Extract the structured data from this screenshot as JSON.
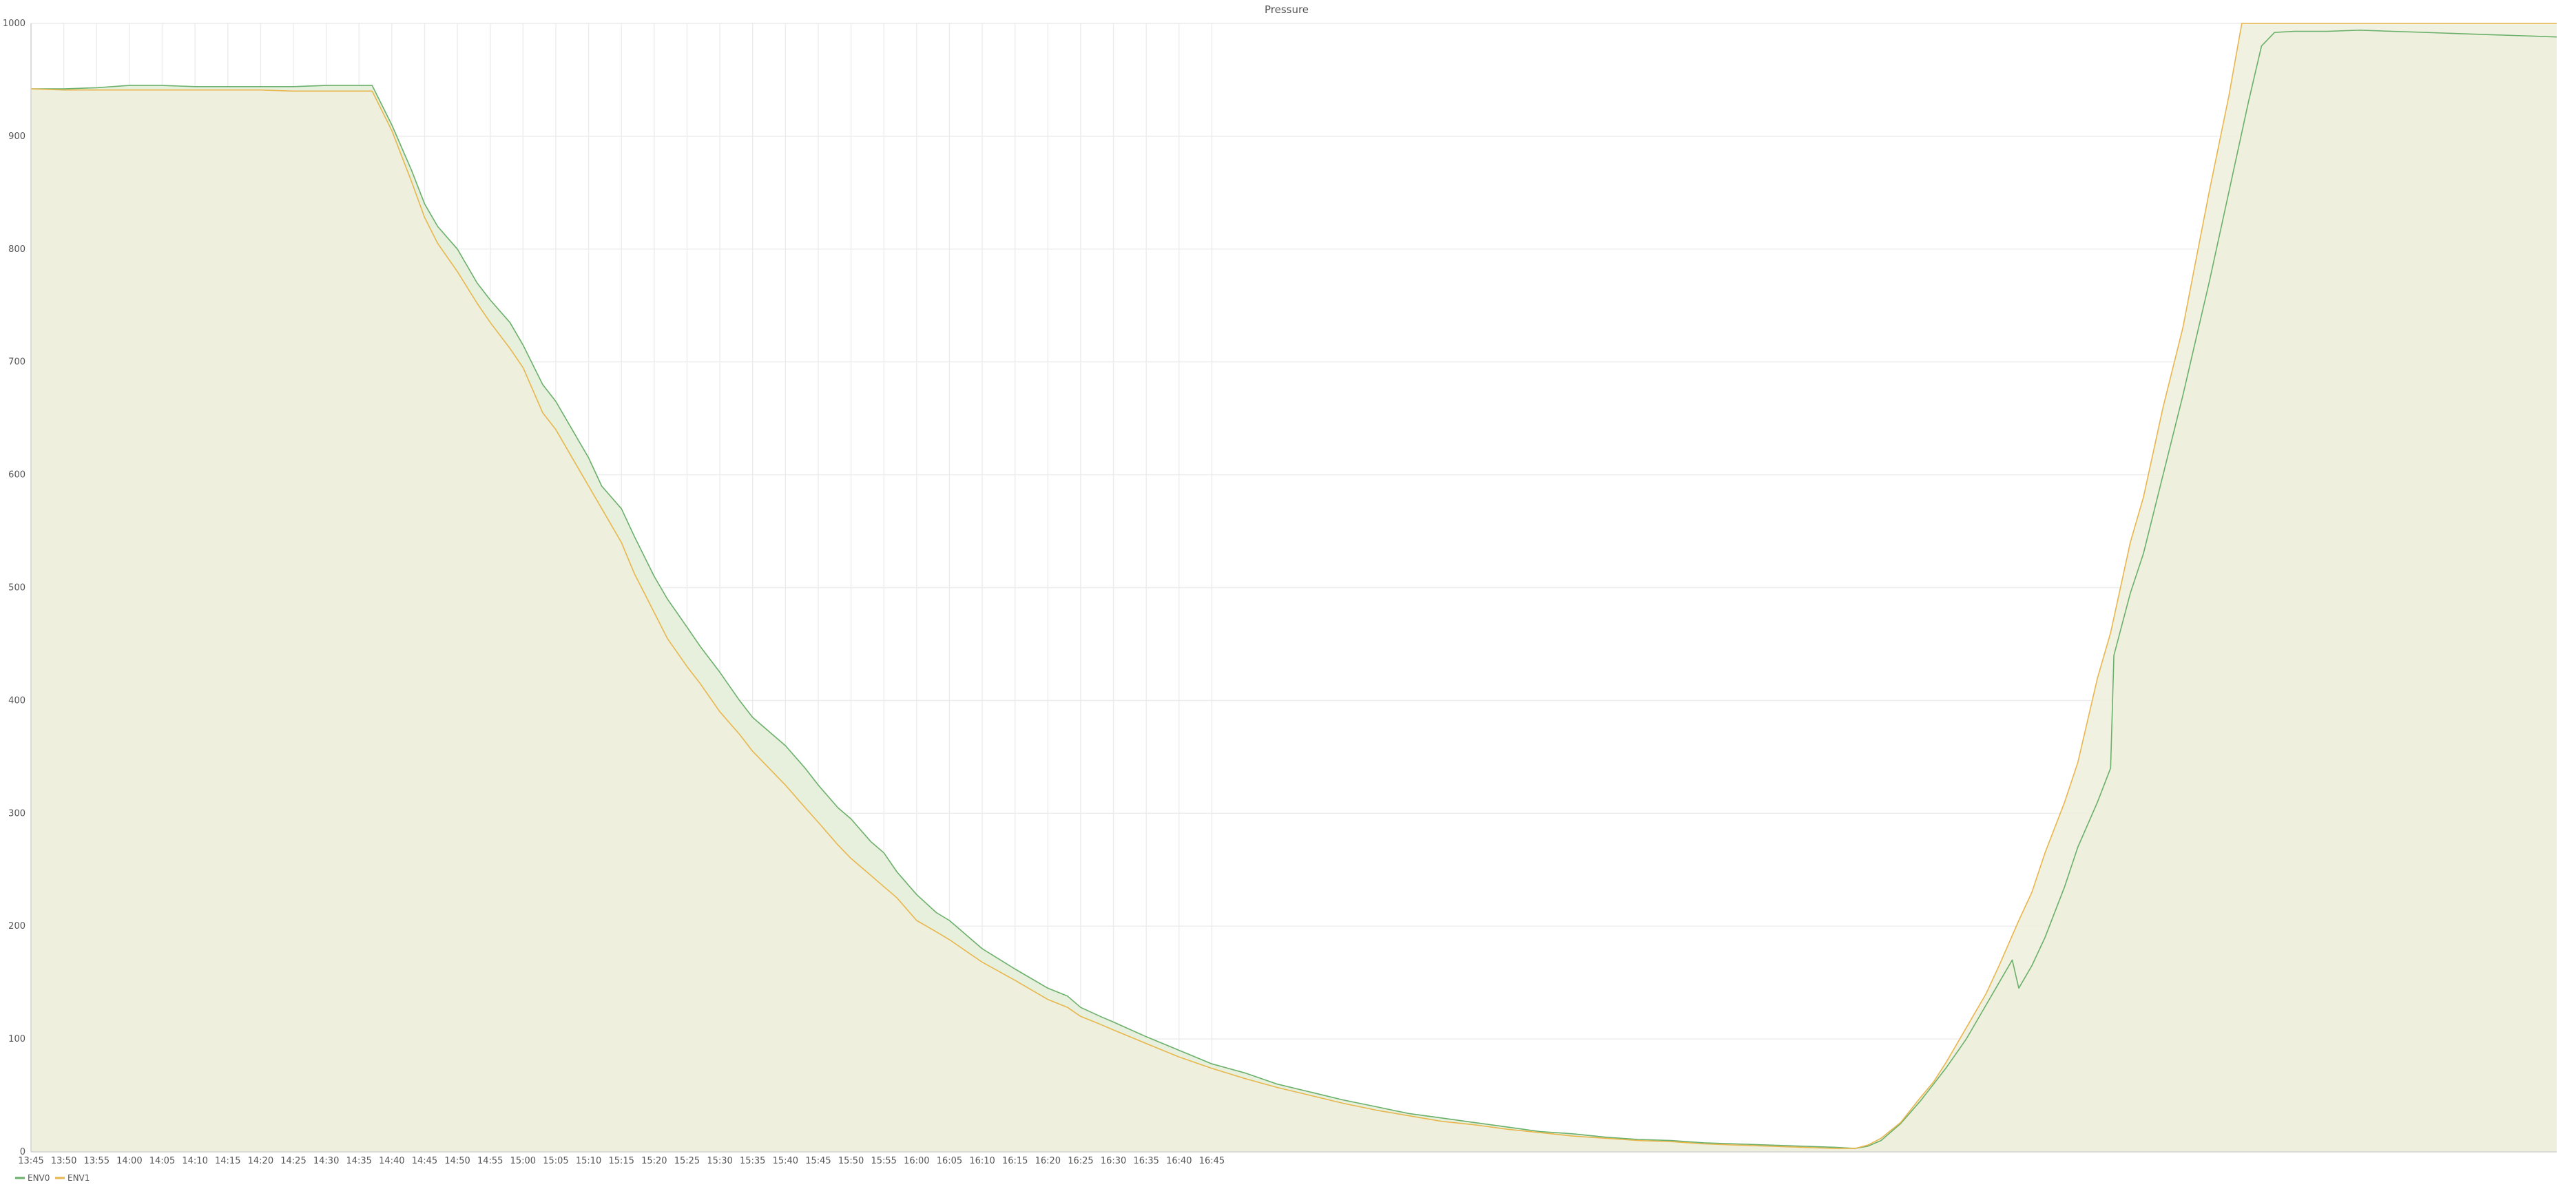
{
  "chart_data": {
    "type": "area",
    "title": "Pressure",
    "xlabel": "",
    "ylabel": "",
    "ylim": [
      0,
      1000
    ],
    "y_ticks": [
      0,
      100,
      200,
      300,
      400,
      500,
      600,
      700,
      800,
      900,
      1000
    ],
    "x_ticks": [
      "13:45",
      "13:50",
      "13:55",
      "14:00",
      "14:05",
      "14:10",
      "14:15",
      "14:20",
      "14:25",
      "14:30",
      "14:35",
      "14:40",
      "14:45",
      "14:50",
      "14:55",
      "15:00",
      "15:05",
      "15:10",
      "15:15",
      "15:20",
      "15:25",
      "15:30",
      "15:35",
      "15:40",
      "15:45",
      "15:50",
      "15:55",
      "16:00",
      "16:05",
      "16:10",
      "16:15",
      "16:20",
      "16:25",
      "16:30",
      "16:35",
      "16:40",
      "16:45"
    ],
    "x_unit": "minutes after 13:45 on shared time axis",
    "grid": true,
    "legend_position": "bottom-left",
    "series": [
      {
        "name": "ENV0",
        "color": "#6ab06a",
        "fill": "#e6f0dc",
        "points": [
          [
            0,
            942
          ],
          [
            5,
            942
          ],
          [
            10,
            943
          ],
          [
            15,
            945
          ],
          [
            20,
            945
          ],
          [
            25,
            944
          ],
          [
            30,
            944
          ],
          [
            35,
            944
          ],
          [
            40,
            944
          ],
          [
            45,
            945
          ],
          [
            50,
            945
          ],
          [
            52,
            945
          ],
          [
            55,
            910
          ],
          [
            58,
            870
          ],
          [
            60,
            840
          ],
          [
            62,
            820
          ],
          [
            65,
            800
          ],
          [
            68,
            770
          ],
          [
            70,
            755
          ],
          [
            73,
            735
          ],
          [
            75,
            715
          ],
          [
            78,
            680
          ],
          [
            80,
            665
          ],
          [
            83,
            635
          ],
          [
            85,
            615
          ],
          [
            87,
            590
          ],
          [
            90,
            570
          ],
          [
            92,
            545
          ],
          [
            95,
            510
          ],
          [
            97,
            490
          ],
          [
            100,
            465
          ],
          [
            102,
            448
          ],
          [
            105,
            425
          ],
          [
            108,
            400
          ],
          [
            110,
            385
          ],
          [
            115,
            360
          ],
          [
            118,
            340
          ],
          [
            120,
            325
          ],
          [
            123,
            305
          ],
          [
            125,
            295
          ],
          [
            128,
            275
          ],
          [
            130,
            265
          ],
          [
            132,
            248
          ],
          [
            135,
            228
          ],
          [
            138,
            212
          ],
          [
            140,
            205
          ],
          [
            143,
            190
          ],
          [
            145,
            180
          ],
          [
            150,
            162
          ],
          [
            155,
            145
          ],
          [
            158,
            138
          ],
          [
            160,
            128
          ],
          [
            163,
            120
          ],
          [
            165,
            115
          ],
          [
            170,
            102
          ],
          [
            175,
            90
          ],
          [
            180,
            78
          ],
          [
            185,
            70
          ],
          [
            190,
            60
          ],
          [
            195,
            53
          ],
          [
            200,
            46
          ],
          [
            205,
            40
          ],
          [
            210,
            34
          ],
          [
            215,
            30
          ],
          [
            220,
            26
          ],
          [
            225,
            22
          ],
          [
            230,
            18
          ],
          [
            235,
            16
          ],
          [
            240,
            13
          ],
          [
            245,
            11
          ],
          [
            250,
            10
          ],
          [
            255,
            8
          ],
          [
            260,
            7
          ],
          [
            265,
            6
          ],
          [
            270,
            5
          ],
          [
            275,
            4
          ],
          [
            278,
            3
          ],
          [
            280,
            5
          ],
          [
            282,
            10
          ],
          [
            285,
            25
          ],
          [
            288,
            45
          ],
          [
            290,
            60
          ],
          [
            292,
            75
          ],
          [
            295,
            100
          ],
          [
            298,
            130
          ],
          [
            300,
            150
          ],
          [
            302,
            170
          ],
          [
            303,
            145
          ],
          [
            305,
            165
          ],
          [
            307,
            190
          ],
          [
            310,
            235
          ],
          [
            312,
            270
          ],
          [
            315,
            310
          ],
          [
            317,
            340
          ],
          [
            317.5,
            440
          ],
          [
            320,
            495
          ],
          [
            322,
            530
          ],
          [
            325,
            600
          ],
          [
            328,
            670
          ],
          [
            330,
            720
          ],
          [
            332,
            770
          ],
          [
            335,
            850
          ],
          [
            338,
            930
          ],
          [
            340,
            980
          ],
          [
            342,
            992
          ],
          [
            345,
            993
          ],
          [
            350,
            993
          ],
          [
            355,
            994
          ],
          [
            360,
            993
          ],
          [
            365,
            992
          ],
          [
            370,
            991
          ],
          [
            375,
            990
          ],
          [
            380,
            989
          ],
          [
            385,
            988
          ]
        ]
      },
      {
        "name": "ENV1",
        "color": "#e8b64c",
        "fill": "#efeedc",
        "points": [
          [
            0,
            942
          ],
          [
            5,
            941
          ],
          [
            10,
            941
          ],
          [
            15,
            941
          ],
          [
            20,
            941
          ],
          [
            25,
            941
          ],
          [
            30,
            941
          ],
          [
            35,
            941
          ],
          [
            40,
            940
          ],
          [
            45,
            940
          ],
          [
            50,
            940
          ],
          [
            52,
            940
          ],
          [
            55,
            905
          ],
          [
            58,
            860
          ],
          [
            60,
            828
          ],
          [
            62,
            805
          ],
          [
            65,
            780
          ],
          [
            68,
            752
          ],
          [
            70,
            735
          ],
          [
            73,
            712
          ],
          [
            75,
            695
          ],
          [
            78,
            655
          ],
          [
            80,
            640
          ],
          [
            83,
            610
          ],
          [
            85,
            590
          ],
          [
            88,
            560
          ],
          [
            90,
            540
          ],
          [
            92,
            512
          ],
          [
            95,
            478
          ],
          [
            97,
            455
          ],
          [
            100,
            430
          ],
          [
            102,
            415
          ],
          [
            105,
            390
          ],
          [
            108,
            370
          ],
          [
            110,
            355
          ],
          [
            115,
            325
          ],
          [
            118,
            305
          ],
          [
            120,
            292
          ],
          [
            123,
            272
          ],
          [
            125,
            260
          ],
          [
            128,
            245
          ],
          [
            130,
            235
          ],
          [
            132,
            225
          ],
          [
            135,
            205
          ],
          [
            138,
            195
          ],
          [
            140,
            188
          ],
          [
            143,
            176
          ],
          [
            145,
            168
          ],
          [
            150,
            152
          ],
          [
            155,
            135
          ],
          [
            158,
            128
          ],
          [
            160,
            120
          ],
          [
            163,
            113
          ],
          [
            165,
            108
          ],
          [
            170,
            96
          ],
          [
            175,
            84
          ],
          [
            180,
            74
          ],
          [
            185,
            65
          ],
          [
            190,
            57
          ],
          [
            195,
            50
          ],
          [
            200,
            43
          ],
          [
            205,
            37
          ],
          [
            210,
            32
          ],
          [
            215,
            27
          ],
          [
            220,
            24
          ],
          [
            225,
            20
          ],
          [
            230,
            17
          ],
          [
            235,
            14
          ],
          [
            240,
            12
          ],
          [
            245,
            10
          ],
          [
            250,
            9
          ],
          [
            255,
            7
          ],
          [
            260,
            6
          ],
          [
            265,
            5
          ],
          [
            270,
            4
          ],
          [
            275,
            3
          ],
          [
            278,
            3
          ],
          [
            280,
            6
          ],
          [
            282,
            12
          ],
          [
            285,
            26
          ],
          [
            288,
            48
          ],
          [
            290,
            62
          ],
          [
            292,
            80
          ],
          [
            295,
            110
          ],
          [
            298,
            140
          ],
          [
            300,
            165
          ],
          [
            303,
            205
          ],
          [
            305,
            230
          ],
          [
            307,
            265
          ],
          [
            310,
            310
          ],
          [
            312,
            345
          ],
          [
            315,
            420
          ],
          [
            317,
            460
          ],
          [
            320,
            540
          ],
          [
            322,
            580
          ],
          [
            325,
            660
          ],
          [
            328,
            730
          ],
          [
            330,
            790
          ],
          [
            332,
            850
          ],
          [
            335,
            935
          ],
          [
            337,
            1000
          ],
          [
            340,
            1000
          ],
          [
            350,
            1000
          ],
          [
            360,
            1000
          ],
          [
            370,
            1000
          ],
          [
            380,
            1000
          ],
          [
            385,
            1000
          ]
        ]
      }
    ]
  }
}
